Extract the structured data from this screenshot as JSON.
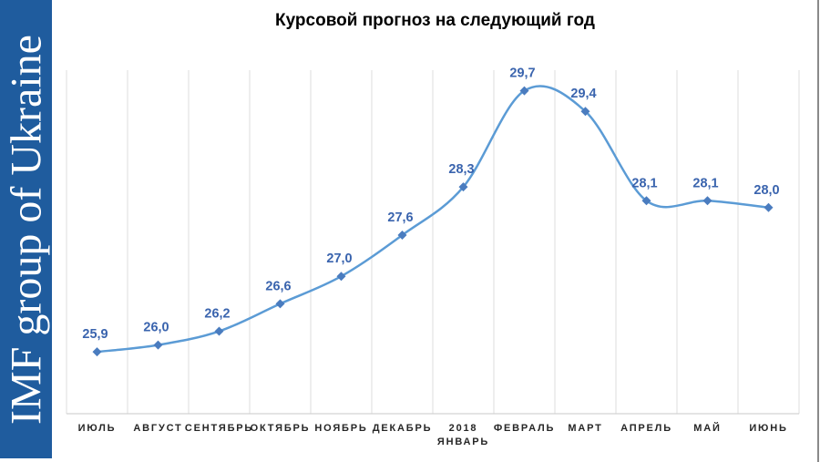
{
  "sidebar": {
    "brand": "IMF group of Ukraine",
    "bg_color": "#1F5C9E",
    "text_color": "#FFFFFF"
  },
  "chart_data": {
    "type": "line",
    "title": "Курсовой прогноз на следующий год",
    "categories": [
      "ИЮЛЬ",
      "АВГУСТ",
      "СЕНТЯБРЬ",
      "ОКТЯБРЬ",
      "НОЯБРЬ",
      "ДЕКАБРЬ",
      "2018\nЯНВАРЬ",
      "ФЕВРАЛЬ",
      "МАРТ",
      "АПРЕЛЬ",
      "МАЙ",
      "ИЮНЬ"
    ],
    "values": [
      25.9,
      26.0,
      26.2,
      26.6,
      27.0,
      27.6,
      28.3,
      29.7,
      29.4,
      28.1,
      28.1,
      28.0
    ],
    "value_labels": [
      "25,9",
      "26,0",
      "26,2",
      "26,6",
      "27,0",
      "27,6",
      "28,3",
      "29,7",
      "29,4",
      "28,1",
      "28,1",
      "28,0"
    ],
    "series_name": "Курсовой прогноз",
    "xlabel": "",
    "ylabel": "",
    "ylim": [
      25,
      30
    ],
    "grid": "vertical-only",
    "legend": "none",
    "smooth_line": true,
    "marker": "diamond",
    "line_color": "#5B9BD5",
    "marker_color": "#4A7CBF",
    "label_color": "#3A64AE",
    "grid_color": "#DEDEDE",
    "axis_line_color": "#C9C9C9",
    "axis_text_color": "#262626"
  }
}
